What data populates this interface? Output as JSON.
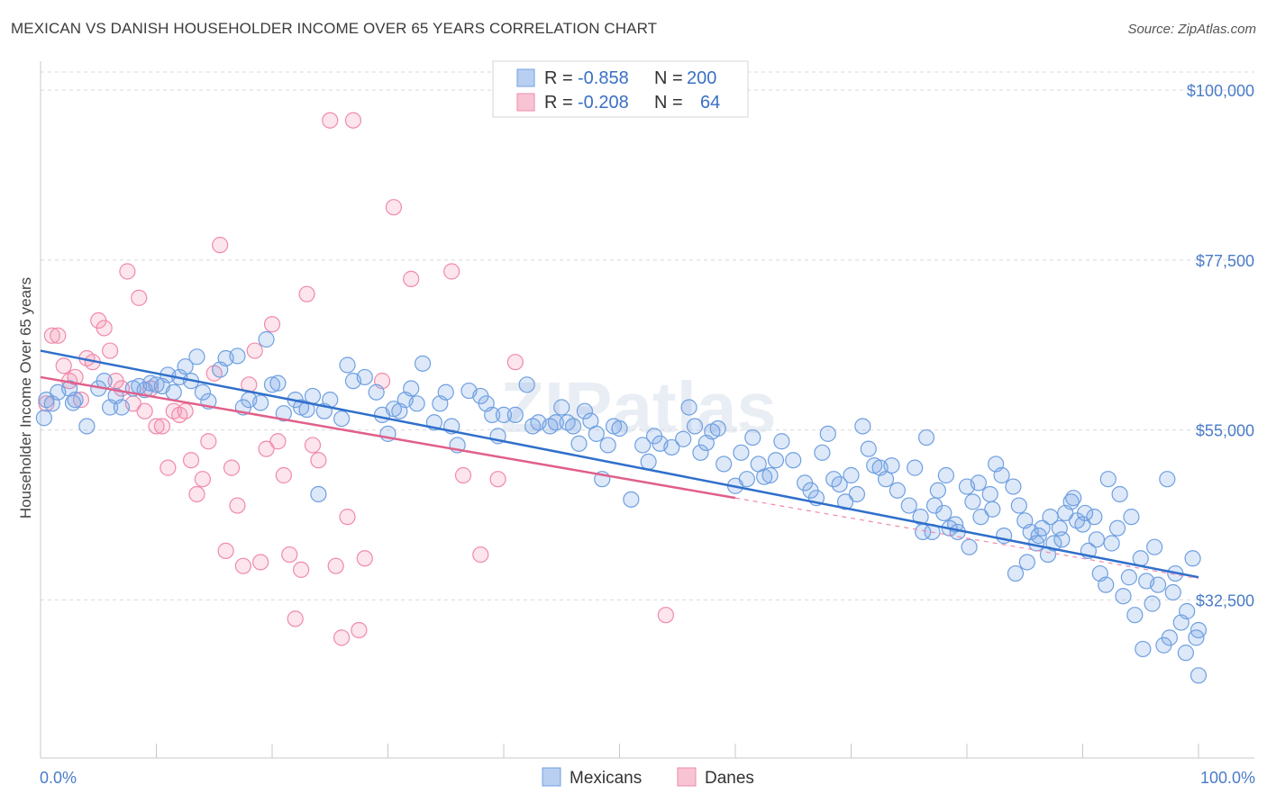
{
  "title": "MEXICAN VS DANISH HOUSEHOLDER INCOME OVER 65 YEARS CORRELATION CHART",
  "source": "Source: ZipAtlas.com",
  "watermark": "ZIPatlas",
  "colors": {
    "mexicans": "#6fa0e0",
    "mexicans_fill": "rgba(120,165,230,0.25)",
    "mexicans_line": "#2f6fcb",
    "danes": "#f08aaa",
    "danes_fill": "rgba(245,150,180,0.25)",
    "danes_line": "#e0608a",
    "axis_text": "#4a7cc7",
    "grid": "#d9d9d9"
  },
  "legend": {
    "rows": [
      {
        "r_label": "R = ",
        "r_value": "-0.858",
        "n_label": "N = ",
        "n_value": "200",
        "series": "mexicans"
      },
      {
        "r_label": "R = ",
        "r_value": "-0.208",
        "n_label": "N = ",
        "n_value": "64",
        "series": "danes"
      }
    ]
  },
  "bottom_legend": [
    "Mexicans",
    "Danes"
  ],
  "chart_data": {
    "type": "scatter",
    "title": "MEXICAN VS DANISH HOUSEHOLDER INCOME OVER 65 YEARS CORRELATION CHART",
    "xlabel": "",
    "ylabel": "Householder Income Over 65 years",
    "x_tick_labels": [
      "0.0%",
      "100.0%"
    ],
    "y_tick_labels": [
      "$32,500",
      "$55,000",
      "$77,500",
      "$100,000"
    ],
    "y_ticks": [
      32500,
      55000,
      77500,
      100000
    ],
    "xlim": [
      0,
      100
    ],
    "ylim": [
      13000,
      103000
    ],
    "grid": true,
    "legend_position": "top-center",
    "series": [
      {
        "name": "Mexicans",
        "color": "#6fa0e0",
        "trend": {
          "x": [
            0,
            100
          ],
          "y": [
            65500,
            35500
          ]
        },
        "points": [
          [
            0.3,
            56.6
          ],
          [
            0.5,
            59.0
          ],
          [
            1.0,
            58.5
          ],
          [
            1.5,
            60.0
          ],
          [
            2.5,
            60.5
          ],
          [
            2.8,
            58.6
          ],
          [
            3.0,
            59.0
          ],
          [
            4.0,
            55.5
          ],
          [
            5.0,
            60.5
          ],
          [
            5.5,
            61.5
          ],
          [
            6.0,
            58.0
          ],
          [
            6.5,
            59.5
          ],
          [
            7.0,
            58.0
          ],
          [
            8.0,
            60.5
          ],
          [
            8.5,
            60.8
          ],
          [
            9.0,
            60.3
          ],
          [
            9.5,
            61.2
          ],
          [
            10.0,
            61.0
          ],
          [
            10.5,
            60.8
          ],
          [
            11.0,
            62.3
          ],
          [
            11.5,
            60.0
          ],
          [
            12.0,
            62.0
          ],
          [
            12.5,
            63.4
          ],
          [
            13.0,
            61.5
          ],
          [
            13.5,
            64.7
          ],
          [
            14.0,
            60.0
          ],
          [
            14.5,
            58.8
          ],
          [
            15.5,
            63.0
          ],
          [
            16.0,
            64.5
          ],
          [
            17.0,
            64.8
          ],
          [
            17.5,
            58.0
          ],
          [
            18.0,
            59.0
          ],
          [
            19.0,
            58.6
          ],
          [
            19.5,
            67.0
          ],
          [
            20.0,
            61.0
          ],
          [
            20.5,
            61.2
          ],
          [
            21.0,
            57.2
          ],
          [
            22.0,
            59.0
          ],
          [
            22.5,
            58.0
          ],
          [
            23.0,
            57.7
          ],
          [
            23.5,
            59.5
          ],
          [
            24.5,
            57.5
          ],
          [
            24.0,
            46.5
          ],
          [
            25.0,
            59.0
          ],
          [
            26.0,
            56.5
          ],
          [
            26.5,
            63.6
          ],
          [
            27.0,
            61.5
          ],
          [
            28.0,
            62.0
          ],
          [
            29.0,
            60.0
          ],
          [
            29.5,
            57.0
          ],
          [
            30.0,
            54.5
          ],
          [
            30.5,
            57.8
          ],
          [
            31.0,
            57.5
          ],
          [
            31.5,
            59.0
          ],
          [
            32.0,
            60.5
          ],
          [
            33.0,
            63.8
          ],
          [
            32.5,
            58.5
          ],
          [
            34.0,
            56.0
          ],
          [
            34.5,
            58.5
          ],
          [
            35.0,
            60.0
          ],
          [
            35.5,
            55.5
          ],
          [
            36.0,
            53.0
          ],
          [
            37.0,
            60.2
          ],
          [
            38.0,
            59.5
          ],
          [
            38.5,
            58.5
          ],
          [
            39.0,
            57.0
          ],
          [
            39.5,
            54.2
          ],
          [
            40.0,
            57.0
          ],
          [
            41.0,
            57.0
          ],
          [
            42.0,
            61.0
          ],
          [
            42.5,
            55.5
          ],
          [
            43.0,
            56.0
          ],
          [
            44.0,
            55.5
          ],
          [
            44.5,
            56.0
          ],
          [
            45.0,
            58.0
          ],
          [
            45.5,
            56.0
          ],
          [
            46.0,
            55.5
          ],
          [
            46.5,
            53.2
          ],
          [
            47.0,
            57.5
          ],
          [
            47.5,
            56.2
          ],
          [
            48.0,
            54.5
          ],
          [
            48.5,
            48.5
          ],
          [
            49.0,
            53.0
          ],
          [
            49.5,
            55.5
          ],
          [
            50.0,
            55.2
          ],
          [
            51.0,
            45.8
          ],
          [
            52.0,
            53.0
          ],
          [
            52.5,
            50.8
          ],
          [
            53.0,
            54.2
          ],
          [
            53.5,
            53.2
          ],
          [
            54.5,
            52.7
          ],
          [
            55.5,
            53.8
          ],
          [
            56.0,
            58.0
          ],
          [
            56.5,
            55.5
          ],
          [
            57.0,
            52.0
          ],
          [
            57.5,
            53.3
          ],
          [
            58.0,
            54.8
          ],
          [
            58.5,
            55.2
          ],
          [
            59.0,
            50.5
          ],
          [
            60.0,
            47.6
          ],
          [
            60.5,
            52.0
          ],
          [
            61.0,
            48.5
          ],
          [
            61.5,
            54.0
          ],
          [
            62.0,
            50.5
          ],
          [
            62.5,
            48.8
          ],
          [
            63.0,
            49.0
          ],
          [
            63.5,
            51.0
          ],
          [
            64.0,
            53.5
          ],
          [
            65.0,
            51.0
          ],
          [
            66.0,
            48.0
          ],
          [
            66.5,
            47.0
          ],
          [
            67.0,
            46.0
          ],
          [
            67.5,
            52.0
          ],
          [
            68.0,
            54.5
          ],
          [
            68.5,
            48.5
          ],
          [
            69.0,
            47.8
          ],
          [
            69.5,
            45.5
          ],
          [
            70.0,
            49.0
          ],
          [
            70.5,
            46.5
          ],
          [
            71.0,
            55.5
          ],
          [
            71.5,
            52.5
          ],
          [
            72.0,
            50.3
          ],
          [
            72.5,
            50.0
          ],
          [
            73.0,
            48.5
          ],
          [
            73.5,
            50.3
          ],
          [
            74.0,
            47.0
          ],
          [
            75.0,
            45.0
          ],
          [
            75.5,
            50.0
          ],
          [
            76.0,
            43.5
          ],
          [
            76.5,
            54.0
          ],
          [
            77.0,
            41.5
          ],
          [
            77.5,
            47.0
          ],
          [
            78.0,
            44.0
          ],
          [
            78.5,
            42.0
          ],
          [
            79.0,
            42.5
          ],
          [
            80.0,
            47.5
          ],
          [
            80.5,
            45.5
          ],
          [
            81.0,
            48.0
          ],
          [
            82.0,
            46.5
          ],
          [
            82.5,
            50.5
          ],
          [
            83.0,
            49.0
          ],
          [
            84.0,
            47.5
          ],
          [
            84.5,
            45.0
          ],
          [
            85.0,
            43.0
          ],
          [
            85.5,
            41.5
          ],
          [
            86.0,
            40.0
          ],
          [
            86.5,
            42.0
          ],
          [
            87.0,
            38.5
          ],
          [
            87.5,
            40.0
          ],
          [
            88.0,
            42.0
          ],
          [
            88.5,
            44.0
          ],
          [
            89.0,
            45.5
          ],
          [
            89.5,
            43.0
          ],
          [
            90.0,
            42.5
          ],
          [
            90.5,
            39.0
          ],
          [
            91.0,
            43.5
          ],
          [
            91.5,
            36.0
          ],
          [
            92.0,
            34.5
          ],
          [
            92.5,
            40.0
          ],
          [
            93.0,
            42.0
          ],
          [
            93.5,
            33.0
          ],
          [
            94.0,
            35.5
          ],
          [
            94.5,
            30.5
          ],
          [
            95.0,
            38.0
          ],
          [
            95.5,
            35.0
          ],
          [
            96.0,
            32.0
          ],
          [
            96.5,
            34.5
          ],
          [
            97.0,
            26.5
          ],
          [
            97.5,
            27.5
          ],
          [
            98.0,
            36.0
          ],
          [
            98.5,
            29.5
          ],
          [
            99.0,
            31.0
          ],
          [
            99.5,
            38.0
          ],
          [
            100.0,
            28.5
          ],
          [
            96.2,
            39.5
          ],
          [
            97.3,
            48.5
          ],
          [
            97.8,
            33.5
          ],
          [
            98.9,
            25.5
          ],
          [
            99.8,
            27.5
          ],
          [
            100.5,
            22.5
          ],
          [
            95.2,
            26.0
          ],
          [
            94.2,
            43.5
          ],
          [
            93.2,
            46.5
          ],
          [
            92.2,
            48.5
          ],
          [
            91.2,
            40.5
          ],
          [
            90.2,
            44.0
          ],
          [
            89.2,
            46.0
          ],
          [
            88.2,
            40.5
          ],
          [
            87.2,
            43.5
          ],
          [
            86.2,
            41.0
          ],
          [
            85.2,
            37.5
          ],
          [
            84.2,
            36.0
          ],
          [
            83.2,
            41.0
          ],
          [
            82.2,
            44.5
          ],
          [
            81.2,
            43.5
          ],
          [
            80.2,
            39.5
          ],
          [
            79.2,
            41.5
          ],
          [
            78.2,
            49.0
          ],
          [
            77.2,
            45.0
          ],
          [
            76.2,
            41.5
          ]
        ]
      },
      {
        "name": "Danes",
        "color": "#f08aaa",
        "trend": {
          "x": [
            0,
            60
          ],
          "y": [
            62000,
            46000
          ]
        },
        "points": [
          [
            0.5,
            58.5
          ],
          [
            1.0,
            67.5
          ],
          [
            1.5,
            67.5
          ],
          [
            2.0,
            63.5
          ],
          [
            2.5,
            61.5
          ],
          [
            3.0,
            62.0
          ],
          [
            3.5,
            59.0
          ],
          [
            4.0,
            64.5
          ],
          [
            4.5,
            64.0
          ],
          [
            5.0,
            69.5
          ],
          [
            5.5,
            68.5
          ],
          [
            6.0,
            65.5
          ],
          [
            6.5,
            61.5
          ],
          [
            7.0,
            60.5
          ],
          [
            7.5,
            76.0
          ],
          [
            8.0,
            58.5
          ],
          [
            8.5,
            72.5
          ],
          [
            9.0,
            57.5
          ],
          [
            9.5,
            60.5
          ],
          [
            10.0,
            55.5
          ],
          [
            10.5,
            55.5
          ],
          [
            11.0,
            50.0
          ],
          [
            11.5,
            57.5
          ],
          [
            12.0,
            57.0
          ],
          [
            12.5,
            57.5
          ],
          [
            13.0,
            51.0
          ],
          [
            13.5,
            46.5
          ],
          [
            14.0,
            48.5
          ],
          [
            14.5,
            53.5
          ],
          [
            15.0,
            62.5
          ],
          [
            15.5,
            79.5
          ],
          [
            16.0,
            39.0
          ],
          [
            16.5,
            50.0
          ],
          [
            17.0,
            45.0
          ],
          [
            17.5,
            37.0
          ],
          [
            18.0,
            61.0
          ],
          [
            18.5,
            65.5
          ],
          [
            19.0,
            37.5
          ],
          [
            19.5,
            52.5
          ],
          [
            20.0,
            69.0
          ],
          [
            20.5,
            53.5
          ],
          [
            21.0,
            49.0
          ],
          [
            21.5,
            38.5
          ],
          [
            22.0,
            30.0
          ],
          [
            22.5,
            36.5
          ],
          [
            23.0,
            73.0
          ],
          [
            23.5,
            53.0
          ],
          [
            24.0,
            51.0
          ],
          [
            25.0,
            96.0
          ],
          [
            25.5,
            37.0
          ],
          [
            26.0,
            27.5
          ],
          [
            26.5,
            43.5
          ],
          [
            27.0,
            96.0
          ],
          [
            27.5,
            28.5
          ],
          [
            28.0,
            38.0
          ],
          [
            29.5,
            61.5
          ],
          [
            30.5,
            84.5
          ],
          [
            32.0,
            75.0
          ],
          [
            35.5,
            76.0
          ],
          [
            36.5,
            49.0
          ],
          [
            38.0,
            38.5
          ],
          [
            39.5,
            48.5
          ],
          [
            41.0,
            64.0
          ],
          [
            54.0,
            30.5
          ]
        ]
      }
    ]
  }
}
